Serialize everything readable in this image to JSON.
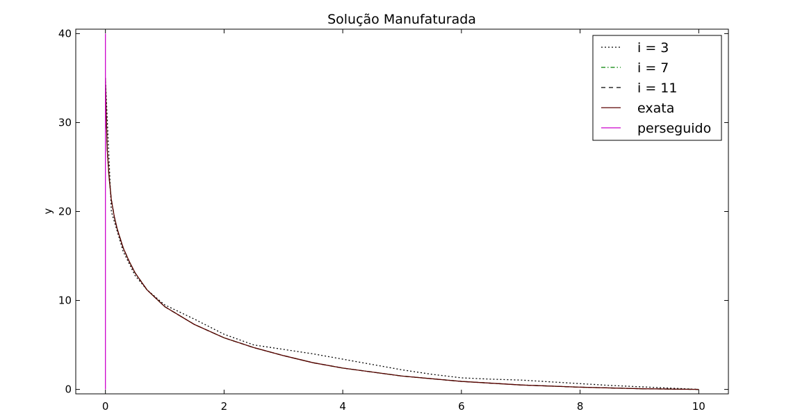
{
  "chart_data": {
    "type": "line",
    "title": "Solução Manufaturada",
    "xlabel": "",
    "ylabel": "y",
    "xlim": [
      -0.5,
      10.5
    ],
    "ylim": [
      -0.5,
      40.5
    ],
    "x_ticks": [
      0,
      2,
      4,
      6,
      8,
      10
    ],
    "y_ticks": [
      0,
      10,
      20,
      30,
      40
    ],
    "grid": false,
    "legend_position": "top-right",
    "series": [
      {
        "name": "i = 3",
        "color": "#000000",
        "style": "dotted",
        "x": [
          0.0,
          0.1,
          0.3,
          0.5,
          0.7,
          1.0,
          1.5,
          2.0,
          2.5,
          3.0,
          3.5,
          4.0,
          4.5,
          5.0,
          5.5,
          6.0,
          6.5,
          7.0,
          7.5,
          8.0,
          8.5,
          9.0,
          9.5,
          10.0
        ],
        "y": [
          35.0,
          20.0,
          15.5,
          12.8,
          11.2,
          9.5,
          7.9,
          6.2,
          5.0,
          4.5,
          4.0,
          3.4,
          2.8,
          2.2,
          1.7,
          1.3,
          1.15,
          1.05,
          0.85,
          0.65,
          0.45,
          0.3,
          0.15,
          0.0
        ]
      },
      {
        "name": "i = 7",
        "color": "#008000",
        "style": "dashdot",
        "x": [
          0.0,
          0.01,
          0.03,
          0.06,
          0.1,
          0.15,
          0.2,
          0.3,
          0.4,
          0.5,
          0.7,
          1.0,
          1.5,
          2.0,
          2.5,
          3.0,
          3.5,
          4.0,
          5.0,
          6.0,
          7.0,
          8.0,
          9.0,
          10.0
        ],
        "y": [
          35.0,
          32.0,
          27.0,
          24.0,
          21.3,
          19.4,
          18.0,
          15.9,
          14.4,
          13.1,
          11.2,
          9.3,
          7.3,
          5.8,
          4.7,
          3.8,
          3.0,
          2.4,
          1.5,
          0.9,
          0.5,
          0.25,
          0.08,
          0.0
        ]
      },
      {
        "name": "i = 11",
        "color": "#000000",
        "style": "dashed",
        "x": [
          0.0,
          0.01,
          0.03,
          0.06,
          0.1,
          0.15,
          0.2,
          0.3,
          0.4,
          0.5,
          0.7,
          1.0,
          1.5,
          2.0,
          2.5,
          3.0,
          3.5,
          4.0,
          5.0,
          6.0,
          7.0,
          8.0,
          9.0,
          10.0
        ],
        "y": [
          35.0,
          32.0,
          27.0,
          24.0,
          21.3,
          19.4,
          18.0,
          15.9,
          14.4,
          13.1,
          11.2,
          9.3,
          7.3,
          5.8,
          4.7,
          3.8,
          3.0,
          2.4,
          1.5,
          0.9,
          0.5,
          0.25,
          0.08,
          0.0
        ]
      },
      {
        "name": "exata",
        "color": "#5a0000",
        "style": "solid",
        "x": [
          0.0,
          0.01,
          0.03,
          0.06,
          0.1,
          0.15,
          0.2,
          0.3,
          0.4,
          0.5,
          0.7,
          1.0,
          1.5,
          2.0,
          2.5,
          3.0,
          3.5,
          4.0,
          5.0,
          6.0,
          7.0,
          8.0,
          9.0,
          10.0
        ],
        "y": [
          35.0,
          32.0,
          27.0,
          24.0,
          21.3,
          19.4,
          18.0,
          15.9,
          14.4,
          13.1,
          11.2,
          9.3,
          7.3,
          5.8,
          4.7,
          3.8,
          3.0,
          2.4,
          1.5,
          0.9,
          0.5,
          0.25,
          0.08,
          0.0
        ]
      },
      {
        "name": "perseguido",
        "color": "#cc00cc",
        "style": "solid",
        "x": [
          0.0,
          0.0
        ],
        "y": [
          0.0,
          40.0
        ]
      }
    ]
  }
}
